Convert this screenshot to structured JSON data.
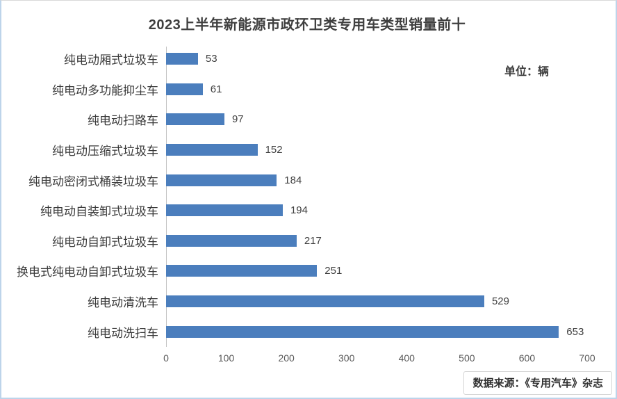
{
  "page": {
    "background": "#ffffff",
    "border_color": "#bdd4ea"
  },
  "chart_data": {
    "type": "bar",
    "orientation": "horizontal",
    "title": "2023上半年新能源市政环卫类专用车类型销量前十",
    "unit_label": "单位：辆",
    "categories": [
      "纯电动厢式垃圾车",
      "纯电动多功能抑尘车",
      "纯电动扫路车",
      "纯电动压缩式垃圾车",
      "纯电动密闭式桶装垃圾车",
      "纯电动自装卸式垃圾车",
      "纯电动自卸式垃圾车",
      "换电式纯电动自卸式垃圾车",
      "纯电动清洗车",
      "纯电动洗扫车"
    ],
    "values": [
      53,
      61,
      97,
      152,
      184,
      194,
      217,
      251,
      529,
      653
    ],
    "xlim": [
      0,
      700
    ],
    "x_ticks": [
      "0",
      "100",
      "200",
      "300",
      "400",
      "500",
      "600",
      "700"
    ],
    "bar_color": "#4b7ebd",
    "axis_line_color": "#c3c3c3",
    "grid": false,
    "legend": "none",
    "data_labels": true
  },
  "footer": {
    "source_text": "数据来源：《专用汽车》杂志"
  }
}
